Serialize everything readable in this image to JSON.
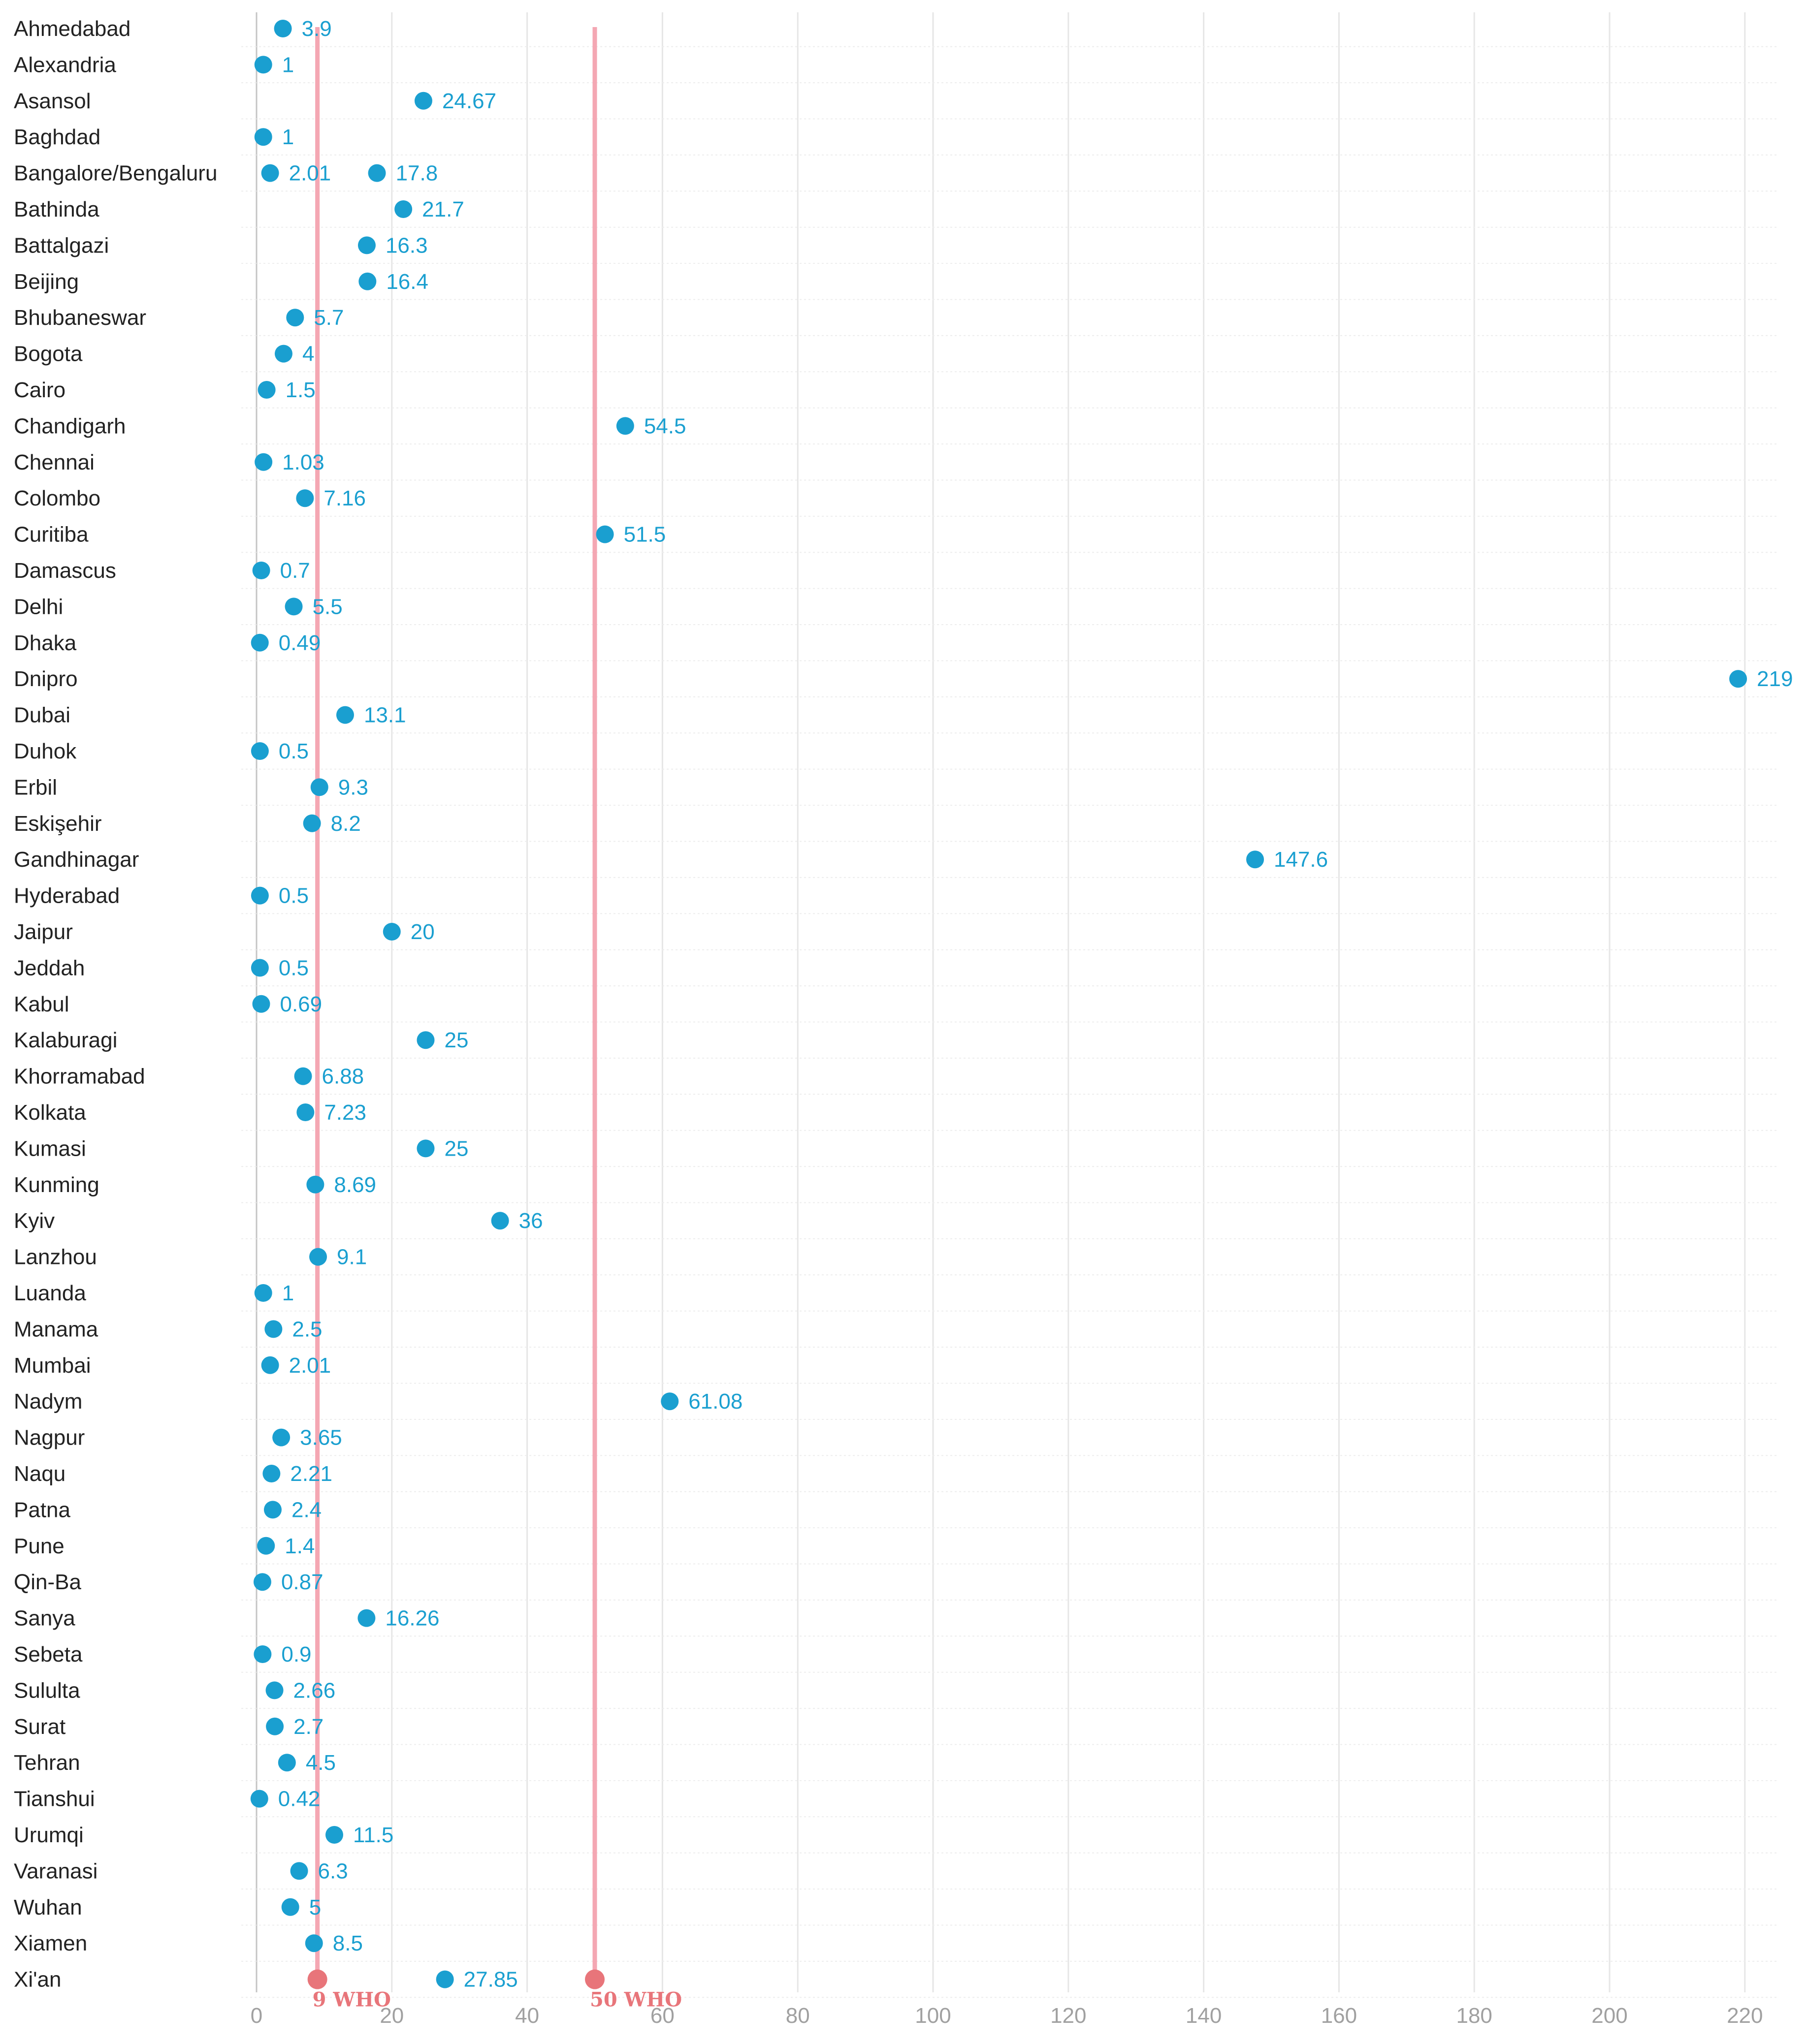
{
  "chart_data": {
    "type": "scatter",
    "title": "",
    "xlabel": "",
    "ylabel": "",
    "xlim": [
      0,
      220
    ],
    "x_ticks": [
      0,
      20,
      40,
      60,
      80,
      100,
      120,
      140,
      160,
      180,
      200,
      220
    ],
    "grid": true,
    "colors": {
      "point": "#1a9fd0",
      "reference_line": "#f4a7b3",
      "reference_marker": "#e8757a",
      "gridline": "#e6e6e6",
      "row_rule": "#ededed",
      "tick_text": "#a0a0a0",
      "city_text": "#222222"
    },
    "reference_lines": [
      {
        "value": 9,
        "label": "9 WHO"
      },
      {
        "value": 50,
        "label": "50 WHO"
      }
    ],
    "categories": [
      "Ahmedabad",
      "Alexandria",
      "Asansol",
      "Baghdad",
      "Bangalore/Bengaluru",
      "Bathinda",
      "Battalgazi",
      "Beijing",
      "Bhubaneswar",
      "Bogota",
      "Cairo",
      "Chandigarh",
      "Chennai",
      "Colombo",
      "Curitiba",
      "Damascus",
      "Delhi",
      "Dhaka",
      "Dnipro",
      "Dubai",
      "Duhok",
      "Erbil",
      "Eskişehir",
      "Gandhinagar",
      "Hyderabad",
      "Jaipur",
      "Jeddah",
      "Kabul",
      "Kalaburagi",
      "Khorramabad",
      "Kolkata",
      "Kumasi",
      "Kunming",
      "Kyiv",
      "Lanzhou",
      "Luanda",
      "Manama",
      "Mumbai",
      "Nadym",
      "Nagpur",
      "Naqu",
      "Patna",
      "Pune",
      "Qin-Ba",
      "Sanya",
      "Sebeta",
      "Sululta",
      "Surat",
      "Tehran",
      "Tianshui",
      "Urumqi",
      "Varanasi",
      "Wuhan",
      "Xiamen",
      "Xi'an"
    ],
    "points": [
      {
        "city": "Ahmedabad",
        "value": 3.9,
        "label": "3.9"
      },
      {
        "city": "Alexandria",
        "value": 1,
        "label": "1"
      },
      {
        "city": "Asansol",
        "value": 24.67,
        "label": "24.67"
      },
      {
        "city": "Baghdad",
        "value": 1,
        "label": "1"
      },
      {
        "city": "Bangalore/Bengaluru",
        "value": 2.01,
        "label": "2.01"
      },
      {
        "city": "Bangalore/Bengaluru",
        "value": 17.8,
        "label": "17.8"
      },
      {
        "city": "Bathinda",
        "value": 21.7,
        "label": "21.7"
      },
      {
        "city": "Battalgazi",
        "value": 16.3,
        "label": "16.3"
      },
      {
        "city": "Beijing",
        "value": 16.4,
        "label": "16.4"
      },
      {
        "city": "Bhubaneswar",
        "value": 5.7,
        "label": "5.7"
      },
      {
        "city": "Bogota",
        "value": 4,
        "label": "4"
      },
      {
        "city": "Cairo",
        "value": 1.5,
        "label": "1.5"
      },
      {
        "city": "Chandigarh",
        "value": 54.5,
        "label": "54.5"
      },
      {
        "city": "Chennai",
        "value": 1.03,
        "label": "1.03"
      },
      {
        "city": "Colombo",
        "value": 7.16,
        "label": "7.16"
      },
      {
        "city": "Curitiba",
        "value": 51.5,
        "label": "51.5"
      },
      {
        "city": "Damascus",
        "value": 0.7,
        "label": "0.7"
      },
      {
        "city": "Delhi",
        "value": 5.5,
        "label": "5.5"
      },
      {
        "city": "Dhaka",
        "value": 0.49,
        "label": "0.49"
      },
      {
        "city": "Dnipro",
        "value": 219,
        "label": "219"
      },
      {
        "city": "Dubai",
        "value": 13.1,
        "label": "13.1"
      },
      {
        "city": "Duhok",
        "value": 0.5,
        "label": "0.5"
      },
      {
        "city": "Erbil",
        "value": 9.3,
        "label": "9.3"
      },
      {
        "city": "Eskişehir",
        "value": 8.2,
        "label": "8.2"
      },
      {
        "city": "Gandhinagar",
        "value": 147.6,
        "label": "147.6"
      },
      {
        "city": "Hyderabad",
        "value": 0.5,
        "label": "0.5"
      },
      {
        "city": "Jaipur",
        "value": 20,
        "label": "20"
      },
      {
        "city": "Jeddah",
        "value": 0.5,
        "label": "0.5"
      },
      {
        "city": "Kabul",
        "value": 0.69,
        "label": "0.69"
      },
      {
        "city": "Kalaburagi",
        "value": 25,
        "label": "25"
      },
      {
        "city": "Khorramabad",
        "value": 6.88,
        "label": "6.88"
      },
      {
        "city": "Kolkata",
        "value": 7.23,
        "label": "7.23"
      },
      {
        "city": "Kumasi",
        "value": 25,
        "label": "25"
      },
      {
        "city": "Kunming",
        "value": 8.69,
        "label": "8.69"
      },
      {
        "city": "Kyiv",
        "value": 36,
        "label": "36"
      },
      {
        "city": "Lanzhou",
        "value": 9.1,
        "label": "9.1"
      },
      {
        "city": "Luanda",
        "value": 1,
        "label": "1"
      },
      {
        "city": "Manama",
        "value": 2.5,
        "label": "2.5"
      },
      {
        "city": "Mumbai",
        "value": 2.01,
        "label": "2.01"
      },
      {
        "city": "Nadym",
        "value": 61.08,
        "label": "61.08"
      },
      {
        "city": "Nagpur",
        "value": 3.65,
        "label": "3.65"
      },
      {
        "city": "Naqu",
        "value": 2.21,
        "label": "2.21"
      },
      {
        "city": "Patna",
        "value": 2.4,
        "label": "2.4"
      },
      {
        "city": "Pune",
        "value": 1.4,
        "label": "1.4"
      },
      {
        "city": "Qin-Ba",
        "value": 0.87,
        "label": "0.87"
      },
      {
        "city": "Sanya",
        "value": 16.26,
        "label": "16.26"
      },
      {
        "city": "Sebeta",
        "value": 0.9,
        "label": "0.9"
      },
      {
        "city": "Sululta",
        "value": 2.66,
        "label": "2.66"
      },
      {
        "city": "Surat",
        "value": 2.7,
        "label": "2.7"
      },
      {
        "city": "Tehran",
        "value": 4.5,
        "label": "4.5"
      },
      {
        "city": "Tianshui",
        "value": 0.42,
        "label": "0.42"
      },
      {
        "city": "Urumqi",
        "value": 11.5,
        "label": "11.5"
      },
      {
        "city": "Varanasi",
        "value": 6.3,
        "label": "6.3"
      },
      {
        "city": "Wuhan",
        "value": 5,
        "label": "5"
      },
      {
        "city": "Xiamen",
        "value": 8.5,
        "label": "8.5"
      },
      {
        "city": "Xi'an",
        "value": 27.85,
        "label": "27.85"
      }
    ]
  }
}
